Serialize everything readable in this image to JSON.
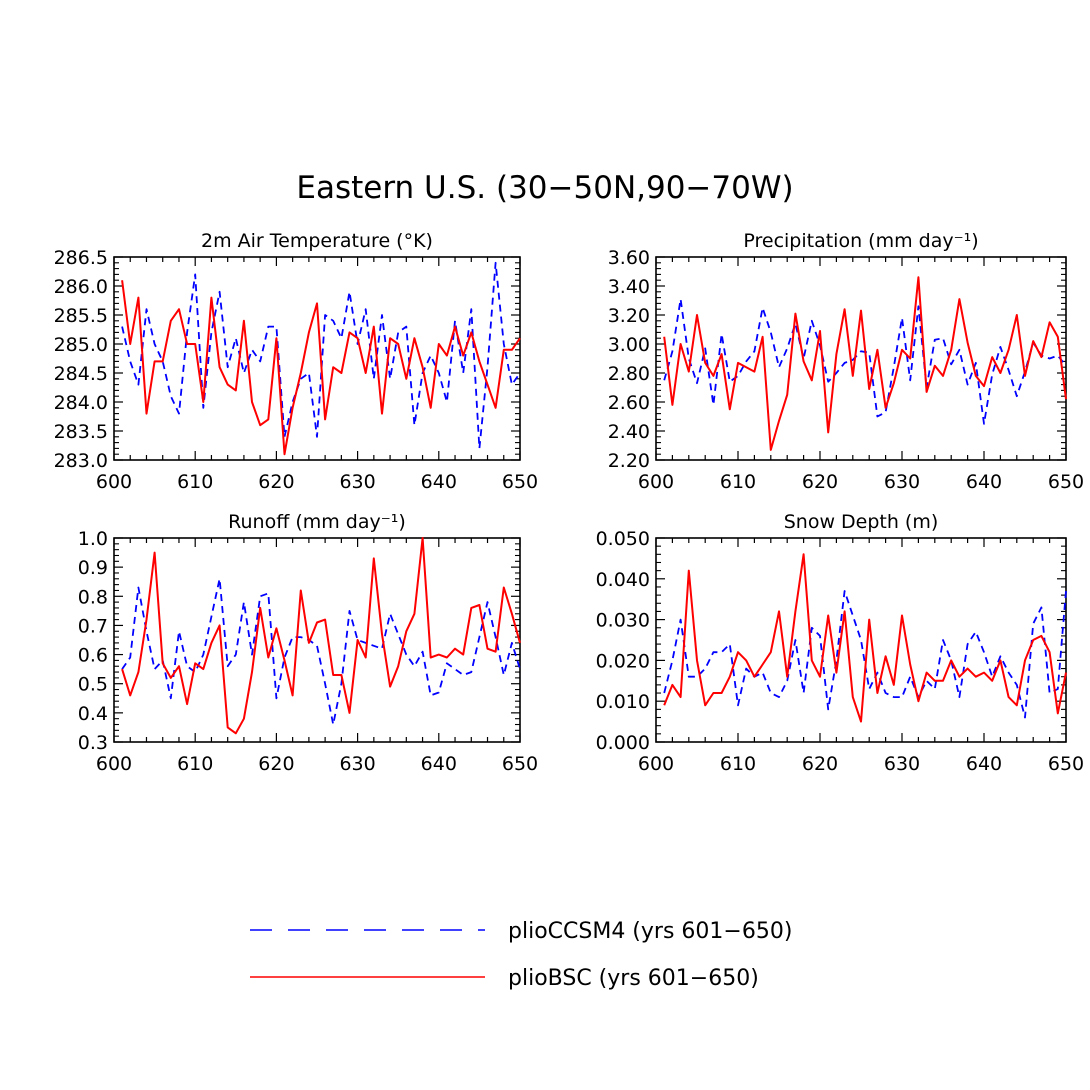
{
  "figure": {
    "title": "Eastern U.S. (30−50N,90−70W)",
    "legend": {
      "position": "bottom-center",
      "entries": [
        {
          "label": "plioCCSM4 (yrs 601−650)",
          "color": "#0000ff",
          "style": "dashed"
        },
        {
          "label": "plioBSC (yrs 601−650)",
          "color": "#ff0000",
          "style": "solid"
        }
      ]
    }
  },
  "chart_data": [
    {
      "type": "line",
      "title": "2m Air Temperature (°K)",
      "x": [
        601,
        602,
        603,
        604,
        605,
        606,
        607,
        608,
        609,
        610,
        611,
        612,
        613,
        614,
        615,
        616,
        617,
        618,
        619,
        620,
        621,
        622,
        623,
        624,
        625,
        626,
        627,
        628,
        629,
        630,
        631,
        632,
        633,
        634,
        635,
        636,
        637,
        638,
        639,
        640,
        641,
        642,
        643,
        644,
        645,
        646,
        647,
        648,
        649,
        650
      ],
      "xlim": [
        600,
        650
      ],
      "xticks": [
        "600",
        "610",
        "620",
        "630",
        "640",
        "650"
      ],
      "ylim": [
        283.0,
        286.5
      ],
      "yticks": [
        "283.0",
        "283.5",
        "284.0",
        "284.5",
        "285.0",
        "285.5",
        "286.0",
        "286.5"
      ],
      "series": [
        {
          "name": "plioCCSM4 (yrs 601−650)",
          "values": [
            285.3,
            284.7,
            284.3,
            285.6,
            285.0,
            284.7,
            284.1,
            283.8,
            285.2,
            286.2,
            283.9,
            285.2,
            285.9,
            284.6,
            285.1,
            284.5,
            284.9,
            284.7,
            285.3,
            285.3,
            283.4,
            284.0,
            284.4,
            284.5,
            283.4,
            285.5,
            285.4,
            285.1,
            285.9,
            285.0,
            285.6,
            284.4,
            285.5,
            284.4,
            285.2,
            285.3,
            283.6,
            284.5,
            284.8,
            284.5,
            284.0,
            285.4,
            284.5,
            285.6,
            283.2,
            284.6,
            286.4,
            285.0,
            284.3,
            284.5
          ]
        },
        {
          "name": "plioBSC (yrs 601−650)",
          "values": [
            286.1,
            285.0,
            285.8,
            283.8,
            284.7,
            284.7,
            285.4,
            285.6,
            285.0,
            285.0,
            284.0,
            285.8,
            284.6,
            284.3,
            284.2,
            285.4,
            284.0,
            283.6,
            283.7,
            285.1,
            283.1,
            283.9,
            284.5,
            285.2,
            285.7,
            283.7,
            284.6,
            284.5,
            285.2,
            285.1,
            284.5,
            285.3,
            283.8,
            285.1,
            285.0,
            284.4,
            285.1,
            284.6,
            283.9,
            285.0,
            284.8,
            285.3,
            284.8,
            285.2,
            284.7,
            284.3,
            283.9,
            284.9,
            284.9,
            285.1
          ]
        }
      ]
    },
    {
      "type": "line",
      "title": "Precipitation (mm day⁻¹)",
      "x": [
        601,
        602,
        603,
        604,
        605,
        606,
        607,
        608,
        609,
        610,
        611,
        612,
        613,
        614,
        615,
        616,
        617,
        618,
        619,
        620,
        621,
        622,
        623,
        624,
        625,
        626,
        627,
        628,
        629,
        630,
        631,
        632,
        633,
        634,
        635,
        636,
        637,
        638,
        639,
        640,
        641,
        642,
        643,
        644,
        645,
        646,
        647,
        648,
        649,
        650
      ],
      "xlim": [
        600,
        650
      ],
      "xticks": [
        "600",
        "610",
        "620",
        "630",
        "640",
        "650"
      ],
      "ylim": [
        2.2,
        3.6
      ],
      "yticks": [
        "2.20",
        "2.40",
        "2.60",
        "2.80",
        "3.00",
        "3.20",
        "3.40",
        "3.60"
      ],
      "series": [
        {
          "name": "plioCCSM4 (yrs 601−650)",
          "values": [
            2.75,
            2.95,
            3.31,
            2.9,
            2.73,
            2.97,
            2.58,
            3.07,
            2.74,
            2.78,
            2.88,
            2.95,
            3.25,
            3.08,
            2.84,
            2.97,
            3.14,
            2.9,
            3.16,
            2.99,
            2.74,
            2.8,
            2.87,
            2.89,
            2.95,
            2.94,
            2.5,
            2.53,
            2.84,
            3.18,
            2.75,
            3.26,
            2.7,
            3.03,
            3.04,
            2.86,
            2.96,
            2.72,
            2.87,
            2.45,
            2.79,
            2.98,
            2.82,
            2.64,
            2.81,
            3.01,
            2.92,
            2.9,
            2.92,
            2.85
          ]
        },
        {
          "name": "plioBSC (yrs 601−650)",
          "values": [
            3.05,
            2.58,
            3.0,
            2.81,
            3.2,
            2.87,
            2.78,
            2.93,
            2.55,
            2.87,
            2.84,
            2.81,
            3.05,
            2.27,
            2.47,
            2.65,
            3.21,
            2.88,
            2.75,
            3.09,
            2.39,
            2.93,
            3.24,
            2.78,
            3.23,
            2.69,
            2.96,
            2.56,
            2.73,
            2.96,
            2.9,
            3.46,
            2.67,
            2.85,
            2.78,
            2.96,
            3.31,
            3.01,
            2.78,
            2.71,
            2.91,
            2.8,
            2.96,
            3.2,
            2.78,
            3.02,
            2.91,
            3.15,
            3.05,
            2.62
          ]
        }
      ]
    },
    {
      "type": "line",
      "title": "Runoff (mm day⁻¹)",
      "x": [
        601,
        602,
        603,
        604,
        605,
        606,
        607,
        608,
        609,
        610,
        611,
        612,
        613,
        614,
        615,
        616,
        617,
        618,
        619,
        620,
        621,
        622,
        623,
        624,
        625,
        626,
        627,
        628,
        629,
        630,
        631,
        632,
        633,
        634,
        635,
        636,
        637,
        638,
        639,
        640,
        641,
        642,
        643,
        644,
        645,
        646,
        647,
        648,
        649,
        650
      ],
      "xlim": [
        600,
        650
      ],
      "xticks": [
        "600",
        "610",
        "620",
        "630",
        "640",
        "650"
      ],
      "ylim": [
        0.3,
        1.0
      ],
      "yticks": [
        "0.3",
        "0.4",
        "0.5",
        "0.6",
        "0.7",
        "0.8",
        "0.9",
        "1.0"
      ],
      "series": [
        {
          "name": "plioCCSM4 (yrs 601−650)",
          "values": [
            0.55,
            0.59,
            0.83,
            0.68,
            0.55,
            0.58,
            0.45,
            0.68,
            0.56,
            0.54,
            0.6,
            0.73,
            0.86,
            0.56,
            0.6,
            0.78,
            0.6,
            0.8,
            0.81,
            0.45,
            0.59,
            0.66,
            0.66,
            0.65,
            0.63,
            0.5,
            0.36,
            0.5,
            0.75,
            0.65,
            0.64,
            0.63,
            0.62,
            0.74,
            0.67,
            0.6,
            0.56,
            0.61,
            0.46,
            0.47,
            0.57,
            0.55,
            0.53,
            0.54,
            0.66,
            0.78,
            0.66,
            0.53,
            0.64,
            0.55
          ]
        },
        {
          "name": "plioBSC (yrs 601−650)",
          "values": [
            0.55,
            0.46,
            0.54,
            0.72,
            0.95,
            0.57,
            0.52,
            0.56,
            0.43,
            0.57,
            0.55,
            0.64,
            0.7,
            0.35,
            0.33,
            0.38,
            0.54,
            0.76,
            0.59,
            0.69,
            0.58,
            0.46,
            0.82,
            0.64,
            0.71,
            0.72,
            0.53,
            0.53,
            0.4,
            0.65,
            0.59,
            0.93,
            0.67,
            0.49,
            0.56,
            0.68,
            0.74,
            1.0,
            0.59,
            0.6,
            0.59,
            0.62,
            0.6,
            0.76,
            0.77,
            0.62,
            0.61,
            0.83,
            0.74,
            0.64
          ]
        }
      ]
    },
    {
      "type": "line",
      "title": "Snow Depth (m)",
      "x": [
        601,
        602,
        603,
        604,
        605,
        606,
        607,
        608,
        609,
        610,
        611,
        612,
        613,
        614,
        615,
        616,
        617,
        618,
        619,
        620,
        621,
        622,
        623,
        624,
        625,
        626,
        627,
        628,
        629,
        630,
        631,
        632,
        633,
        634,
        635,
        636,
        637,
        638,
        639,
        640,
        641,
        642,
        643,
        644,
        645,
        646,
        647,
        648,
        649,
        650
      ],
      "xlim": [
        600,
        650
      ],
      "xticks": [
        "600",
        "610",
        "620",
        "630",
        "640",
        "650"
      ],
      "ylim": [
        0.0,
        0.05
      ],
      "yticks": [
        "0.000",
        "0.010",
        "0.020",
        "0.030",
        "0.040",
        "0.050"
      ],
      "series": [
        {
          "name": "plioCCSM4 (yrs 601−650)",
          "values": [
            0.012,
            0.02,
            0.03,
            0.016,
            0.016,
            0.018,
            0.022,
            0.022,
            0.024,
            0.009,
            0.018,
            0.016,
            0.017,
            0.012,
            0.011,
            0.015,
            0.025,
            0.012,
            0.028,
            0.026,
            0.008,
            0.02,
            0.037,
            0.031,
            0.025,
            0.013,
            0.017,
            0.012,
            0.011,
            0.011,
            0.016,
            0.011,
            0.015,
            0.013,
            0.025,
            0.02,
            0.011,
            0.024,
            0.027,
            0.022,
            0.016,
            0.021,
            0.017,
            0.014,
            0.006,
            0.029,
            0.033,
            0.012,
            0.013,
            0.037
          ]
        },
        {
          "name": "plioBSC (yrs 601−650)",
          "values": [
            0.009,
            0.014,
            0.011,
            0.042,
            0.02,
            0.009,
            0.012,
            0.012,
            0.016,
            0.022,
            0.02,
            0.016,
            0.019,
            0.022,
            0.032,
            0.016,
            0.032,
            0.046,
            0.02,
            0.016,
            0.031,
            0.017,
            0.032,
            0.011,
            0.005,
            0.03,
            0.012,
            0.021,
            0.014,
            0.031,
            0.019,
            0.01,
            0.017,
            0.015,
            0.015,
            0.02,
            0.016,
            0.018,
            0.016,
            0.017,
            0.015,
            0.02,
            0.011,
            0.009,
            0.02,
            0.025,
            0.026,
            0.022,
            0.007,
            0.017
          ]
        }
      ]
    }
  ]
}
